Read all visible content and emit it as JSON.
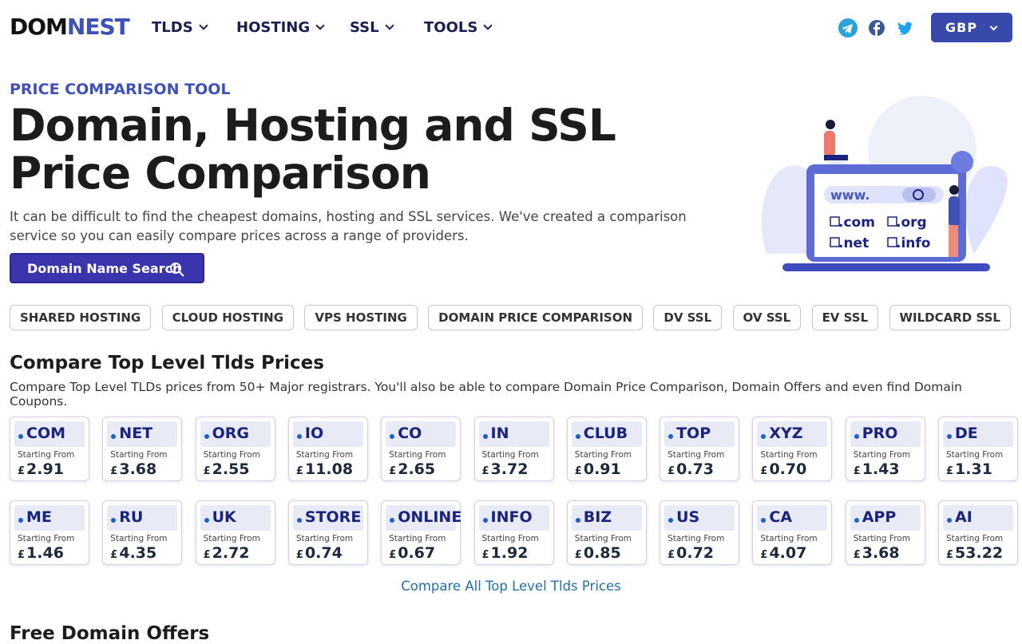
{
  "header": {
    "logo": {
      "first": "DOM",
      "second": "NEST"
    },
    "nav": [
      "TLDS",
      "HOSTING",
      "SSL",
      "TOOLS"
    ],
    "currency_selector": "GBP"
  },
  "hero": {
    "eyebrow": "PRICE COMPARISON TOOL",
    "title_lines": [
      "Domain, Hosting and SSL",
      "Price Comparison"
    ],
    "description": "It can be difficult to find the cheapest domains, hosting and SSL services. We've created a comparison service so you can easily compare prices across a range of providers.",
    "button": "Domain Name Search",
    "illustration": {
      "url": "www.",
      "extensions": [
        ".com",
        ".org",
        ".net",
        ".info"
      ]
    }
  },
  "categories": [
    "SHARED HOSTING",
    "CLOUD HOSTING",
    "VPS HOSTING",
    "DOMAIN PRICE COMPARISON",
    "DV SSL",
    "OV SSL",
    "EV SSL",
    "WILDCARD SSL"
  ],
  "tld_section": {
    "title": "Compare Top Level Tlds Prices",
    "subtitle": "Compare Top Level TLDs prices from 50+ Major registrars. You'll also be able to compare Domain Price Comparison, Domain Offers and even find Domain Coupons.",
    "price_label": "Starting From",
    "currency_symbol": "£",
    "tlds": [
      {
        "name": "COM",
        "price": "2.91"
      },
      {
        "name": "NET",
        "price": "3.68"
      },
      {
        "name": "ORG",
        "price": "2.55"
      },
      {
        "name": "IO",
        "price": "11.08"
      },
      {
        "name": "CO",
        "price": "2.65"
      },
      {
        "name": "IN",
        "price": "3.72"
      },
      {
        "name": "CLUB",
        "price": "0.91"
      },
      {
        "name": "TOP",
        "price": "0.73"
      },
      {
        "name": "XYZ",
        "price": "0.70"
      },
      {
        "name": "PRO",
        "price": "1.43"
      },
      {
        "name": "DE",
        "price": "1.31"
      },
      {
        "name": "ME",
        "price": "1.46"
      },
      {
        "name": "RU",
        "price": "4.35"
      },
      {
        "name": "UK",
        "price": "2.72"
      },
      {
        "name": "STORE",
        "price": "0.74"
      },
      {
        "name": "ONLINE",
        "price": "0.67"
      },
      {
        "name": "INFO",
        "price": "1.92"
      },
      {
        "name": "BIZ",
        "price": "0.85"
      },
      {
        "name": "US",
        "price": "0.72"
      },
      {
        "name": "CA",
        "price": "4.07"
      },
      {
        "name": "APP",
        "price": "3.68"
      },
      {
        "name": "AI",
        "price": "53.22"
      }
    ],
    "link": "Compare All Top Level Tlds Prices"
  },
  "next_section": {
    "title": "Free Domain Offers"
  }
}
